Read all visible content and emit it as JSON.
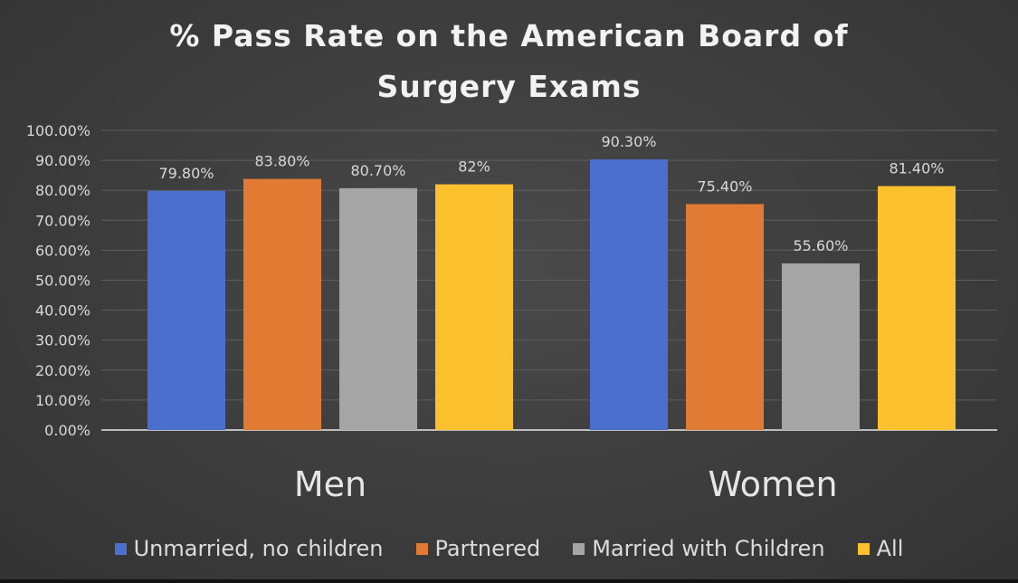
{
  "chart_data": {
    "type": "bar",
    "title_lines": [
      "% Pass Rate on the American Board of",
      "Surgery Exams"
    ],
    "categories": [
      "Men",
      "Women"
    ],
    "series": [
      {
        "name": "Unmarried, no children",
        "color": "#4a6fcf",
        "values": [
          79.8,
          90.3
        ],
        "labels": [
          "79.80%",
          "90.30%"
        ]
      },
      {
        "name": "Partnered",
        "color": "#e17a32",
        "values": [
          83.8,
          75.4
        ],
        "labels": [
          "83.80%",
          "75.40%"
        ]
      },
      {
        "name": "Married with Children",
        "color": "#a5a5a5",
        "values": [
          80.7,
          55.6
        ],
        "labels": [
          "80.70%",
          "55.60%"
        ]
      },
      {
        "name": "All",
        "color": "#fbc02d",
        "values": [
          82,
          81.4
        ],
        "labels": [
          "82%",
          "81.40%"
        ]
      }
    ],
    "ylim": [
      0,
      100
    ],
    "yticks": [
      0,
      10,
      20,
      30,
      40,
      50,
      60,
      70,
      80,
      90,
      100
    ],
    "ytick_labels": [
      "0.00%",
      "10.00%",
      "20.00%",
      "30.00%",
      "40.00%",
      "50.00%",
      "60.00%",
      "70.00%",
      "80.00%",
      "90.00%",
      "100.00%"
    ],
    "xlabel": "",
    "ylabel": "",
    "grid": true,
    "legend_position": "bottom"
  }
}
